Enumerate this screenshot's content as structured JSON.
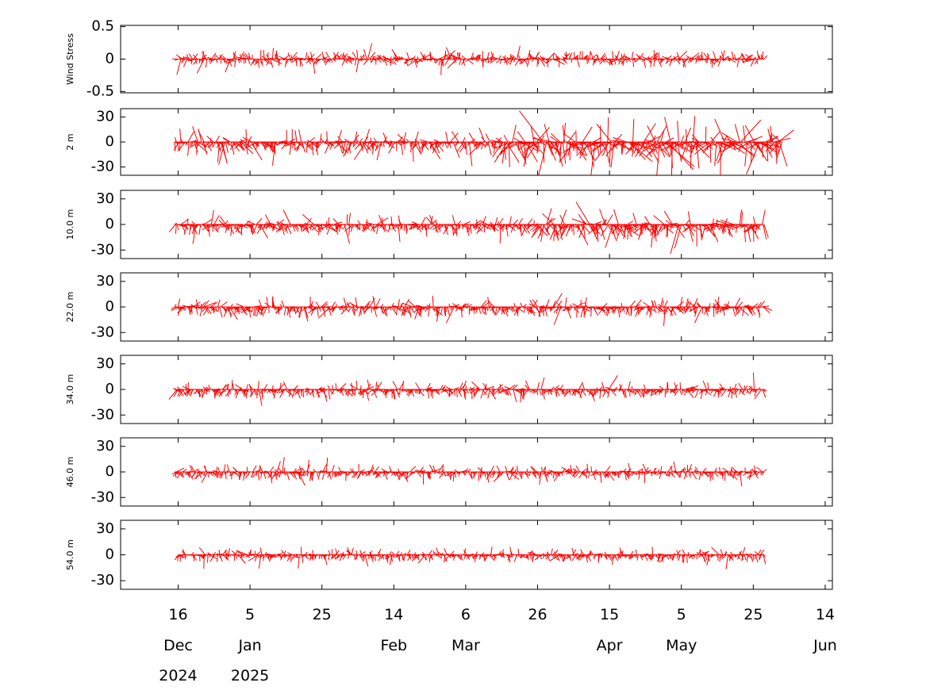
{
  "chart_data": {
    "type": "stick-plot",
    "color": "#ff0000",
    "x_axis": {
      "range": [
        "2024-11-30",
        "2025-06-16"
      ],
      "ticks": [
        {
          "date": "2024-12-16",
          "day": "16",
          "month": "Dec",
          "year": "2024"
        },
        {
          "date": "2025-01-05",
          "day": "5",
          "month": "Jan",
          "year": "2025"
        },
        {
          "date": "2025-01-25",
          "day": "25",
          "month": "",
          "year": ""
        },
        {
          "date": "2025-02-14",
          "day": "14",
          "month": "Feb",
          "year": ""
        },
        {
          "date": "2025-03-06",
          "day": "6",
          "month": "Mar",
          "year": ""
        },
        {
          "date": "2025-03-26",
          "day": "26",
          "month": "",
          "year": ""
        },
        {
          "date": "2025-04-15",
          "day": "15",
          "month": "Apr",
          "year": ""
        },
        {
          "date": "2025-05-05",
          "day": "5",
          "month": "May",
          "year": ""
        },
        {
          "date": "2025-05-25",
          "day": "25",
          "month": "",
          "year": ""
        },
        {
          "date": "2025-06-14",
          "day": "14",
          "month": "Jun",
          "year": ""
        }
      ]
    },
    "panels": [
      {
        "ylabel": "Wind Stress",
        "ylim": [
          -0.52,
          0.52
        ],
        "yticks": [
          {
            "value": 0.5,
            "label": "0.5"
          },
          {
            "value": 0,
            "label": "0"
          },
          {
            "value": -0.5,
            "label": "-0.5"
          }
        ],
        "data_start": "2024-12-16",
        "data_end": "2025-05-28",
        "typical_amplitude": 0.12,
        "down_bias": 0.0
      },
      {
        "ylabel": "2 m",
        "ylim": [
          -40,
          40
        ],
        "yticks": [
          {
            "value": 30,
            "label": "30"
          },
          {
            "value": 0,
            "label": "0"
          },
          {
            "value": -30,
            "label": "-30"
          }
        ],
        "data_start": "2024-12-15",
        "data_end": "2025-06-02",
        "typical_amplitude": 14,
        "down_bias": 0.6
      },
      {
        "ylabel": "10.0 m",
        "ylim": [
          -40,
          40
        ],
        "yticks": [
          {
            "value": 30,
            "label": "30"
          },
          {
            "value": 0,
            "label": "0"
          },
          {
            "value": -30,
            "label": "-30"
          }
        ],
        "data_start": "2024-12-15",
        "data_end": "2025-05-28",
        "typical_amplitude": 12,
        "down_bias": 0.6
      },
      {
        "ylabel": "22.0 m",
        "ylim": [
          -40,
          40
        ],
        "yticks": [
          {
            "value": 30,
            "label": "30"
          },
          {
            "value": 0,
            "label": "0"
          },
          {
            "value": -30,
            "label": "-30"
          }
        ],
        "data_start": "2024-12-15",
        "data_end": "2025-05-28",
        "typical_amplitude": 11,
        "down_bias": 0.55
      },
      {
        "ylabel": "34.0 m",
        "ylim": [
          -40,
          40
        ],
        "yticks": [
          {
            "value": 30,
            "label": "30"
          },
          {
            "value": 0,
            "label": "0"
          },
          {
            "value": -30,
            "label": "-30"
          }
        ],
        "data_start": "2024-12-15",
        "data_end": "2025-05-28",
        "typical_amplitude": 10,
        "down_bias": 0.55
      },
      {
        "ylabel": "46.0 m",
        "ylim": [
          -40,
          40
        ],
        "yticks": [
          {
            "value": 30,
            "label": "30"
          },
          {
            "value": 0,
            "label": "0"
          },
          {
            "value": -30,
            "label": "-30"
          }
        ],
        "data_start": "2024-12-15",
        "data_end": "2025-05-28",
        "typical_amplitude": 9,
        "down_bias": 0.5
      },
      {
        "ylabel": "54.0 m",
        "ylim": [
          -40,
          40
        ],
        "yticks": [
          {
            "value": 30,
            "label": "30"
          },
          {
            "value": 0,
            "label": "0"
          },
          {
            "value": -30,
            "label": "-30"
          }
        ],
        "data_start": "2024-12-16",
        "data_end": "2025-05-28",
        "typical_amplitude": 8,
        "down_bias": 0.5
      }
    ]
  }
}
